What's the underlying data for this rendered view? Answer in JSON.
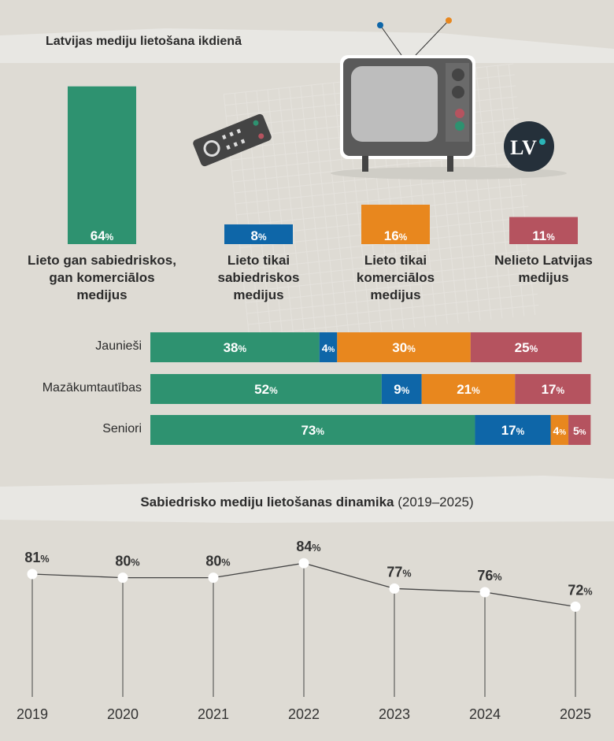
{
  "colors": {
    "public": "#2e9270",
    "public_only": "#0e66a8",
    "commercial": "#e8871e",
    "none": "#b5535f",
    "logo_bg": "#25303a",
    "logo_dot": "#2bb5b8"
  },
  "logo_text": "LV",
  "chart_data": [
    {
      "type": "bar",
      "title": "Latvijas mediju lietošana ikdienā",
      "categories": [
        [
          "Lieto gan sabiedriskos,",
          "gan komerciālos",
          "medijus"
        ],
        [
          "Lieto tikai",
          "sabiedriskos",
          "medijus"
        ],
        [
          "Lieto tikai",
          "komerciālos",
          "medijus"
        ],
        [
          "Nelieto Latvijas",
          "medijus"
        ]
      ],
      "values": [
        64,
        8,
        16,
        11
      ],
      "value_labels": [
        "64%",
        "8%",
        "16%",
        "11%"
      ],
      "unit": "%"
    },
    {
      "type": "bar",
      "stacked": true,
      "orientation": "horizontal",
      "categories": [
        "Jaunieši",
        "Mazākumtautības",
        "Seniori"
      ],
      "series": [
        {
          "name": "Lieto gan sabiedriskos, gan komerciālos medijus",
          "values": [
            38,
            52,
            73
          ]
        },
        {
          "name": "Lieto tikai sabiedriskos medijus",
          "values": [
            4,
            9,
            17
          ]
        },
        {
          "name": "Lieto tikai komerciālos medijus",
          "values": [
            30,
            21,
            4
          ]
        },
        {
          "name": "Nelieto Latvijas medijus",
          "values": [
            25,
            17,
            5
          ]
        }
      ],
      "unit": "%"
    },
    {
      "type": "line",
      "title": "Sabiedrisko mediju lietošanas dinamika",
      "title_range": "(2019–2025)",
      "x": [
        "2019",
        "2020",
        "2021",
        "2022",
        "2023",
        "2024",
        "2025"
      ],
      "values": [
        81,
        80,
        80,
        84,
        77,
        76,
        72
      ],
      "unit": "%"
    }
  ]
}
